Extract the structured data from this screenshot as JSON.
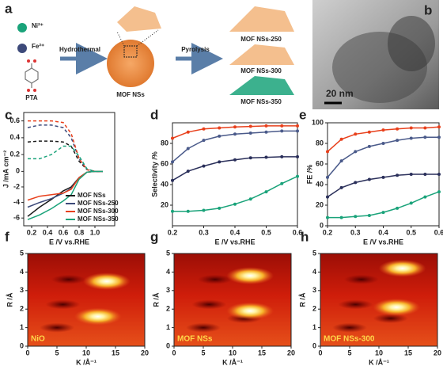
{
  "schematic": {
    "panel": "a",
    "ni": "Ni²⁺",
    "fe": "Fe²⁺",
    "pta": "PTA",
    "step1": "Hydrothermal",
    "mof": "MOF NSs",
    "step2": "Pyrolysis",
    "products": [
      "MOF NSs-250",
      "MOF NSs-300",
      "MOF NSs-350"
    ]
  },
  "tem": {
    "panel": "b",
    "scale": "20 nm"
  },
  "chart_data": [
    {
      "type": "line",
      "panel": "c",
      "xlabel": "E /V vs.RHE",
      "ylabel": "J /mA cm⁻²",
      "x": [
        0.15,
        0.3,
        0.45,
        0.6,
        0.7,
        0.8,
        0.9,
        1.0,
        1.1
      ],
      "xlim": [
        0.1,
        1.25
      ],
      "xticks": [
        0.2,
        0.4,
        0.6,
        0.8,
        {
          "value": 1,
          "label": "1.0"
        }
      ],
      "ylim": [
        -7,
        0
      ],
      "yticks": [
        -2,
        -4,
        -6
      ],
      "y2lim": [
        0,
        0.7
      ],
      "y2ticks": [
        0,
        0.2,
        0.4,
        0.6
      ],
      "legend": "lower right",
      "series": [
        {
          "color": "#1a1a1a",
          "axis": "y2",
          "dash": true,
          "values": [
            0.35,
            0.36,
            0.36,
            0.35,
            0.3,
            0.12,
            0.02,
            0,
            0
          ]
        },
        {
          "color": "#3d4a7a",
          "axis": "y2",
          "dash": true,
          "values": [
            0.52,
            0.55,
            0.55,
            0.52,
            0.4,
            0.15,
            0.02,
            0,
            0
          ]
        },
        {
          "color": "#e8401c",
          "axis": "y2",
          "dash": true,
          "values": [
            0.6,
            0.6,
            0.6,
            0.58,
            0.45,
            0.15,
            0.02,
            0,
            0
          ]
        },
        {
          "color": "#1aa37a",
          "axis": "y2",
          "dash": true,
          "values": [
            0.15,
            0.15,
            0.2,
            0.3,
            0.3,
            0.18,
            0.03,
            0,
            0
          ]
        },
        {
          "name": "MOF NSs",
          "color": "#1a1a1a",
          "values": [
            -5.8,
            -4.6,
            -3.6,
            -2.5,
            -2.0,
            -0.8,
            -0.1,
            0,
            0
          ]
        },
        {
          "name": "MOF NSs-250",
          "color": "#3d4a7a",
          "values": [
            -4.6,
            -4.0,
            -3.5,
            -2.8,
            -2.2,
            -0.8,
            -0.1,
            0,
            0
          ]
        },
        {
          "name": "MOF NSs-300",
          "color": "#e8401c",
          "values": [
            -3.7,
            -3.2,
            -3.0,
            -2.8,
            -2.3,
            -0.8,
            -0.1,
            0,
            0
          ]
        },
        {
          "name": "MOF NSs-350",
          "color": "#1aa37a",
          "values": [
            -6.2,
            -5.6,
            -4.8,
            -3.8,
            -3.0,
            -1.0,
            -0.1,
            0,
            0
          ]
        }
      ]
    },
    {
      "type": "line",
      "panel": "d",
      "xlabel": "E /V vs.RHE",
      "ylabel": "Selectivity /%",
      "markers": true,
      "x": [
        0.2,
        0.25,
        0.3,
        0.35,
        0.4,
        0.45,
        0.5,
        0.55,
        0.6
      ],
      "xlim": [
        0.2,
        0.6
      ],
      "xticks": [
        0.2,
        0.3,
        0.4,
        0.5,
        0.6
      ],
      "ylim": [
        0,
        100
      ],
      "yticks": [
        20,
        40,
        60,
        80
      ],
      "series": [
        {
          "color": "#e8401c",
          "values": [
            85,
            91,
            94,
            95,
            96,
            96.5,
            97,
            97,
            97
          ]
        },
        {
          "color": "#4a5a8a",
          "values": [
            62,
            75,
            83,
            87,
            89,
            90,
            91,
            92,
            92
          ]
        },
        {
          "color": "#2a2f5a",
          "values": [
            44,
            53,
            58,
            62,
            64,
            66,
            66.5,
            67,
            67
          ]
        },
        {
          "color": "#1aa37a",
          "values": [
            14,
            14,
            15,
            17,
            21,
            26,
            33,
            41,
            48
          ]
        }
      ]
    },
    {
      "type": "line",
      "panel": "e",
      "xlabel": "E /V vs.RHE",
      "ylabel": "FE /%",
      "markers": true,
      "x": [
        0.2,
        0.25,
        0.3,
        0.35,
        0.4,
        0.45,
        0.5,
        0.55,
        0.6
      ],
      "xlim": [
        0.2,
        0.6
      ],
      "xticks": [
        0.2,
        0.3,
        0.4,
        0.5,
        0.6
      ],
      "ylim": [
        0,
        100
      ],
      "yticks": [
        0,
        20,
        40,
        60,
        80,
        100
      ],
      "series": [
        {
          "color": "#e8401c",
          "values": [
            72,
            84,
            89,
            91,
            93,
            94,
            95,
            95,
            96
          ]
        },
        {
          "color": "#4a5a8a",
          "values": [
            47,
            63,
            72,
            77,
            80,
            83,
            85,
            86,
            86
          ]
        },
        {
          "color": "#2a2f5a",
          "values": [
            28,
            37,
            42,
            45,
            47,
            49,
            50,
            50,
            50
          ]
        },
        {
          "color": "#1aa37a",
          "values": [
            8,
            8,
            9,
            10,
            13,
            17,
            22,
            28,
            33
          ]
        }
      ]
    },
    {
      "type": "contour",
      "panel": "f",
      "label": "NiO",
      "xlabel": "K /Å⁻¹",
      "ylabel": "R /Å",
      "xlim": [
        0,
        20
      ],
      "xticks": [
        0,
        5,
        10,
        15,
        20
      ],
      "ylim": [
        0,
        5
      ],
      "yticks": [
        0,
        1,
        2,
        3,
        4,
        5
      ],
      "peaks": [
        {
          "x": 12,
          "y": 1.6
        },
        {
          "x": 13.5,
          "y": 3.5
        }
      ]
    },
    {
      "type": "contour",
      "panel": "g",
      "label": "MOF NSs",
      "xlabel": "K /Å⁻¹",
      "ylabel": "R /Å",
      "xlim": [
        0,
        20
      ],
      "xticks": [
        0,
        5,
        10,
        15,
        20
      ],
      "ylim": [
        0,
        5
      ],
      "yticks": [
        0,
        1,
        2,
        3,
        4,
        5
      ],
      "peaks": [
        {
          "x": 13,
          "y": 1.9
        },
        {
          "x": 13,
          "y": 3.8
        }
      ]
    },
    {
      "type": "contour",
      "panel": "h",
      "label": "MOF NSs-300",
      "xlabel": "K /Å⁻¹",
      "ylabel": "R /Å",
      "xlim": [
        0,
        20
      ],
      "xticks": [
        0,
        5,
        10,
        15,
        20
      ],
      "ylim": [
        0,
        5
      ],
      "yticks": [
        0,
        1,
        2,
        3,
        4,
        5
      ],
      "peaks": [
        {
          "x": 13,
          "y": 2.1
        },
        {
          "x": 14,
          "y": 4.2
        }
      ]
    }
  ]
}
